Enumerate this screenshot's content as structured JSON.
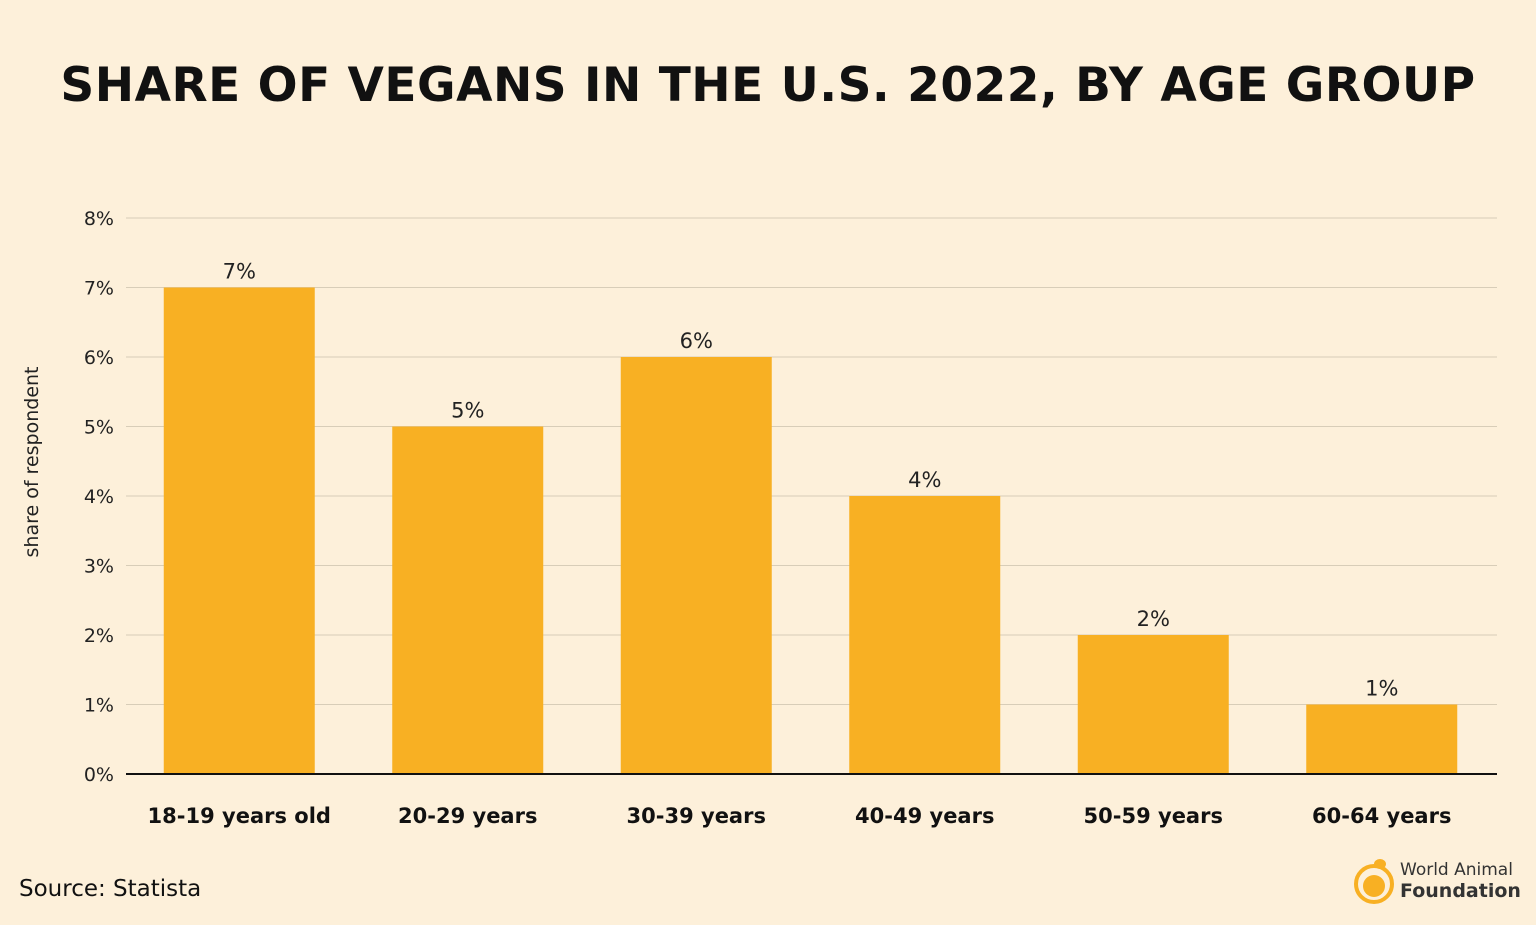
{
  "chart_data": {
    "type": "bar",
    "title": "SHARE OF VEGANS IN THE U.S. 2022, BY AGE GROUP",
    "ylabel": "share of respondent",
    "xlabel": "",
    "categories": [
      "18-19 years old",
      "20-29 years",
      "30-39 years",
      "40-49 years",
      "50-59 years",
      "60-64 years"
    ],
    "values": [
      7,
      5,
      6,
      4,
      2,
      1
    ],
    "data_labels": [
      "7%",
      "5%",
      "6%",
      "4%",
      "2%",
      "1%"
    ],
    "ylim": [
      0,
      8
    ],
    "yticks": [
      "0%",
      "1%",
      "2%",
      "3%",
      "4%",
      "5%",
      "6%",
      "7%",
      "8%"
    ],
    "grid": true,
    "bar_color": "#f8b023",
    "background": "#fdf0da"
  },
  "source": "Source: Statista",
  "logo": {
    "line1": "World Animal",
    "line2": "Foundation"
  }
}
